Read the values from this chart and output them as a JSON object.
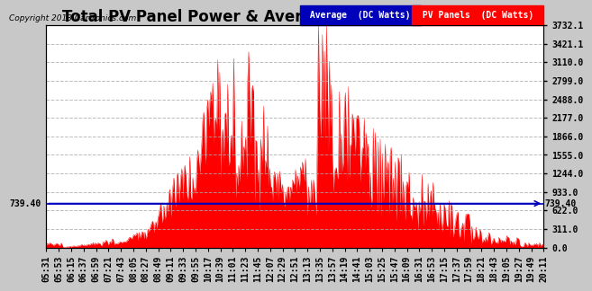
{
  "title": "Total PV Panel Power & Average Power Mon Jul 8 20:31",
  "copyright": "Copyright 2013 Cartronics.com",
  "avg_label": "Average  (DC Watts)",
  "pv_label": "PV Panels  (DC Watts)",
  "avg_color": "#0000bb",
  "pv_color": "#ff0000",
  "avg_value": 739.4,
  "ymin": 0.0,
  "ymax": 3732.1,
  "yticks": [
    0.0,
    311.0,
    622.0,
    933.0,
    1244.0,
    1555.0,
    1866.0,
    2177.0,
    2488.0,
    2799.0,
    3110.0,
    3421.1,
    3732.1
  ],
  "background_color": "#c8c8c8",
  "plot_bg_color": "#ffffff",
  "title_fontsize": 12,
  "tick_fontsize": 7,
  "grid_color": "#aaaaaa",
  "grid_style": "--",
  "xtick_labels": [
    "05:31",
    "05:53",
    "06:15",
    "06:37",
    "06:59",
    "07:21",
    "07:43",
    "08:05",
    "08:27",
    "08:49",
    "09:11",
    "09:33",
    "09:55",
    "10:17",
    "10:39",
    "11:01",
    "11:23",
    "11:45",
    "12:07",
    "12:29",
    "12:51",
    "13:13",
    "13:35",
    "13:57",
    "14:19",
    "14:41",
    "15:03",
    "15:25",
    "15:47",
    "16:09",
    "16:31",
    "16:53",
    "17:15",
    "17:37",
    "17:59",
    "18:21",
    "18:43",
    "19:05",
    "19:27",
    "19:49",
    "20:11"
  ]
}
